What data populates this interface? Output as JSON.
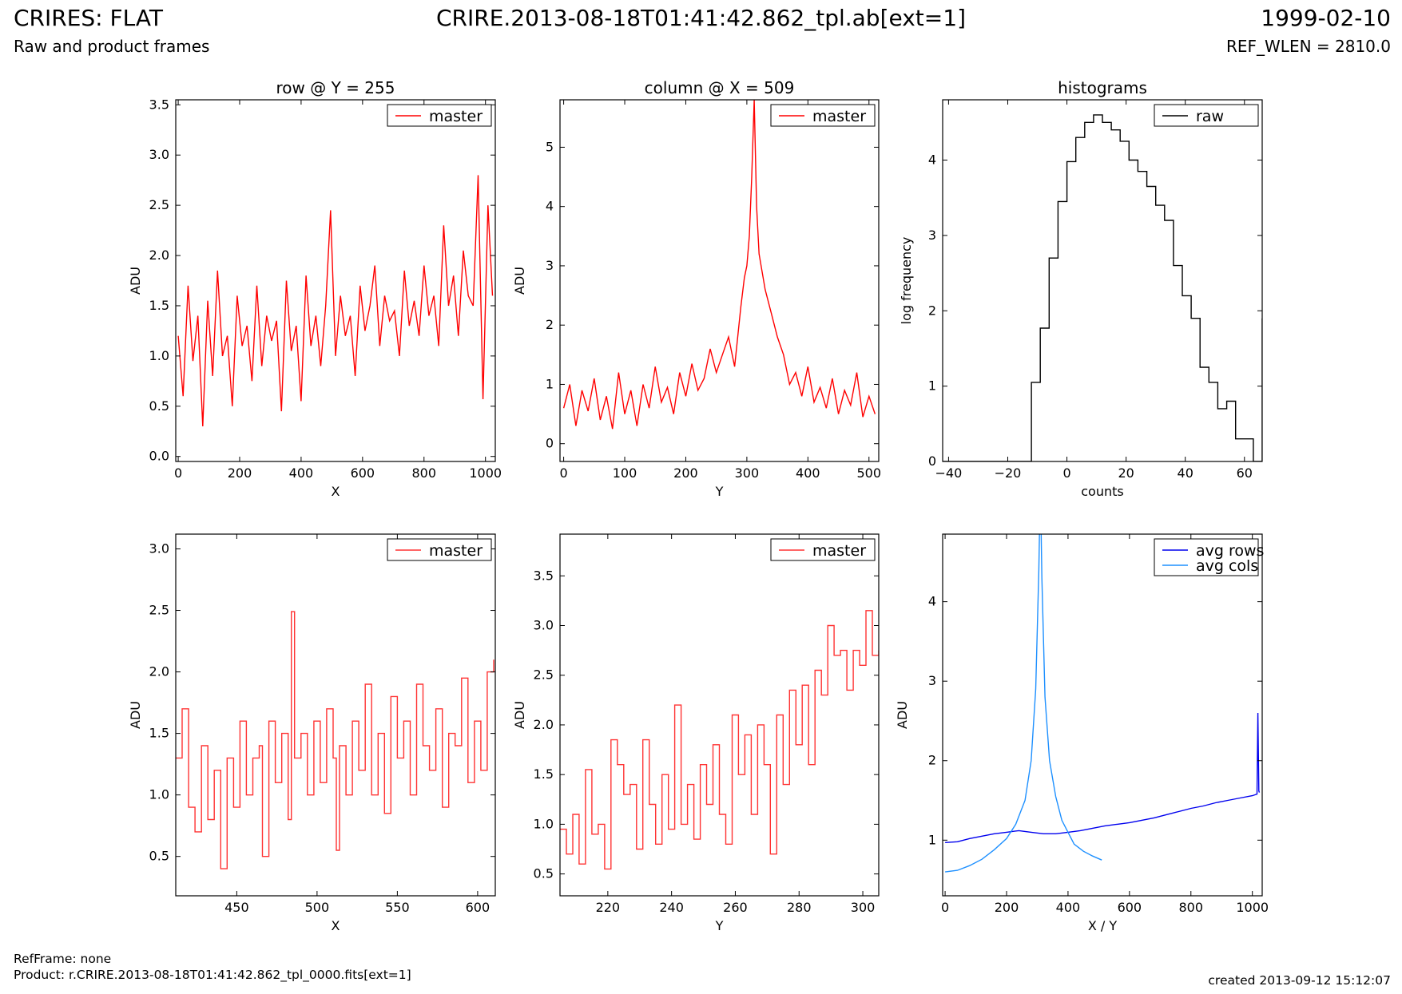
{
  "header": {
    "title": "CRIRES: FLAT",
    "filename": "CRIRE.2013-08-18T01:41:42.862_tpl.ab[ext=1]",
    "date": "1999-02-10",
    "subtitle": "Raw and product frames",
    "ref_wlen": "REF_WLEN = 2810.0"
  },
  "footer": {
    "refframe": "RefFrame: none",
    "product": "Product: r.CRIRE.2013-08-18T01:41:42.862_tpl_0000.fits[ext=1]",
    "created": "created 2013-09-12 15:12:07"
  },
  "colors": {
    "master": "#ff0000",
    "master_zoom": "#ff3333",
    "raw": "#000000",
    "avg_rows": "#0000ee",
    "avg_cols": "#1e90ff"
  },
  "chart_data": [
    {
      "id": "row",
      "type": "line",
      "title": "row @ Y = 255",
      "xlabel": "X",
      "ylabel": "ADU",
      "xlim": [
        -8,
        1032
      ],
      "ylim": [
        -0.05,
        3.55
      ],
      "xticks": [
        0,
        200,
        400,
        600,
        800,
        1000
      ],
      "yticks": [
        0.0,
        0.5,
        1.0,
        1.5,
        2.0,
        2.5,
        3.0,
        3.5
      ],
      "ytick_labels": [
        "0.0",
        "0.5",
        "1.0",
        "1.5",
        "2.0",
        "2.5",
        "3.0",
        "3.5"
      ],
      "legend": "upper right",
      "series": [
        {
          "name": "master",
          "color": "#ff0000",
          "step": false,
          "x": [
            0,
            16,
            32,
            48,
            64,
            80,
            96,
            112,
            128,
            144,
            160,
            176,
            192,
            208,
            224,
            240,
            256,
            272,
            288,
            304,
            320,
            336,
            352,
            368,
            384,
            400,
            416,
            432,
            448,
            464,
            480,
            496,
            512,
            528,
            544,
            560,
            576,
            592,
            608,
            624,
            640,
            656,
            672,
            688,
            704,
            720,
            736,
            752,
            768,
            784,
            800,
            816,
            832,
            848,
            864,
            880,
            896,
            912,
            928,
            944,
            960,
            976,
            992,
            1008,
            1023
          ],
          "y": [
            1.2,
            0.6,
            1.7,
            0.95,
            1.4,
            0.3,
            1.55,
            0.8,
            1.85,
            1.0,
            1.2,
            0.5,
            1.6,
            1.1,
            1.3,
            0.75,
            1.7,
            0.9,
            1.4,
            1.15,
            1.35,
            0.45,
            1.75,
            1.05,
            1.3,
            0.55,
            1.8,
            1.1,
            1.4,
            0.9,
            1.5,
            2.45,
            1.0,
            1.6,
            1.2,
            1.4,
            0.8,
            1.7,
            1.25,
            1.5,
            1.9,
            1.1,
            1.6,
            1.35,
            1.45,
            1.0,
            1.85,
            1.3,
            1.55,
            1.2,
            1.9,
            1.4,
            1.6,
            1.1,
            2.3,
            1.5,
            1.8,
            1.2,
            2.05,
            1.6,
            1.5,
            2.8,
            0.57,
            2.5,
            1.6
          ]
        }
      ]
    },
    {
      "id": "column",
      "type": "line",
      "title": "column @ X = 509",
      "xlabel": "Y",
      "ylabel": "ADU",
      "xlim": [
        -6,
        516
      ],
      "ylim": [
        -0.3,
        5.8
      ],
      "xticks": [
        0,
        100,
        200,
        300,
        400,
        500
      ],
      "yticks": [
        0,
        1,
        2,
        3,
        4,
        5
      ],
      "ytick_labels": [
        "0",
        "1",
        "2",
        "3",
        "4",
        "5"
      ],
      "legend": "upper right",
      "series": [
        {
          "name": "master",
          "color": "#ff0000",
          "step": false,
          "x": [
            0,
            10,
            20,
            30,
            40,
            50,
            60,
            70,
            80,
            90,
            100,
            110,
            120,
            130,
            140,
            150,
            160,
            170,
            180,
            190,
            200,
            210,
            220,
            230,
            240,
            250,
            260,
            270,
            280,
            290,
            296,
            300,
            304,
            308,
            312,
            316,
            320,
            330,
            340,
            350,
            360,
            370,
            380,
            390,
            400,
            410,
            420,
            430,
            440,
            450,
            460,
            470,
            480,
            490,
            500,
            510
          ],
          "y": [
            0.6,
            1.0,
            0.3,
            0.9,
            0.55,
            1.1,
            0.4,
            0.8,
            0.25,
            1.2,
            0.5,
            0.9,
            0.3,
            1.0,
            0.6,
            1.3,
            0.7,
            0.95,
            0.5,
            1.2,
            0.8,
            1.35,
            0.9,
            1.1,
            1.6,
            1.2,
            1.5,
            1.8,
            1.3,
            2.3,
            2.8,
            3.0,
            3.5,
            4.5,
            5.8,
            4.0,
            3.2,
            2.6,
            2.2,
            1.8,
            1.5,
            1.0,
            1.2,
            0.8,
            1.3,
            0.7,
            0.95,
            0.6,
            1.1,
            0.5,
            0.9,
            0.65,
            1.2,
            0.45,
            0.8,
            0.5
          ]
        }
      ]
    },
    {
      "id": "histograms",
      "type": "line",
      "title": "histograms",
      "xlabel": "counts",
      "ylabel": "log frequency",
      "xlim": [
        -42,
        66
      ],
      "ylim": [
        0,
        4.8
      ],
      "xticks": [
        -40,
        -20,
        0,
        20,
        40,
        60
      ],
      "yticks": [
        0,
        1,
        2,
        3,
        4
      ],
      "xtick_labels": [
        "−40",
        "−20",
        "0",
        "20",
        "40",
        "60"
      ],
      "ytick_labels": [
        "0",
        "1",
        "2",
        "3",
        "4"
      ],
      "legend": "upper right",
      "series": [
        {
          "name": "raw",
          "color": "#000000",
          "step": true,
          "x": [
            -42,
            -12,
            -12,
            -9,
            -9,
            -6,
            -6,
            -3,
            -3,
            0,
            0,
            3,
            3,
            6,
            6,
            9,
            9,
            12,
            12,
            15,
            15,
            18,
            18,
            21,
            21,
            24,
            24,
            27,
            27,
            30,
            30,
            33,
            33,
            36,
            36,
            39,
            39,
            42,
            42,
            45,
            45,
            48,
            48,
            51,
            51,
            54,
            54,
            57,
            57,
            60,
            60,
            63,
            63,
            66,
            66
          ],
          "y": [
            0,
            0,
            1.05,
            1.05,
            1.77,
            1.77,
            2.7,
            2.7,
            3.45,
            3.45,
            3.98,
            3.98,
            4.3,
            4.3,
            4.5,
            4.5,
            4.6,
            4.6,
            4.5,
            4.5,
            4.4,
            4.4,
            4.25,
            4.25,
            4.0,
            4.0,
            3.85,
            3.85,
            3.65,
            3.65,
            3.4,
            3.4,
            3.2,
            3.2,
            2.6,
            2.6,
            2.2,
            2.2,
            1.9,
            1.9,
            1.25,
            1.25,
            1.05,
            1.05,
            0.7,
            0.7,
            0.8,
            0.8,
            0.3,
            0.3,
            0.3,
            0.3,
            0,
            0,
            1.9
          ]
        }
      ]
    },
    {
      "id": "row-zoom",
      "type": "line",
      "title": "",
      "xlabel": "X",
      "ylabel": "ADU",
      "xlim": [
        412,
        611
      ],
      "ylim": [
        0.18,
        3.12
      ],
      "xticks": [
        450,
        500,
        550,
        600
      ],
      "yticks": [
        0.5,
        1.0,
        1.5,
        2.0,
        2.5,
        3.0
      ],
      "ytick_labels": [
        "0.5",
        "1.0",
        "1.5",
        "2.0",
        "2.5",
        "3.0"
      ],
      "legend": "upper right",
      "series": [
        {
          "name": "master",
          "color": "#ff3333",
          "step": true,
          "x": [
            412,
            416,
            420,
            424,
            428,
            432,
            436,
            440,
            444,
            448,
            452,
            456,
            460,
            464,
            466,
            470,
            474,
            478,
            482,
            484,
            486,
            490,
            494,
            498,
            502,
            506,
            510,
            512,
            514,
            518,
            522,
            526,
            530,
            534,
            538,
            542,
            546,
            550,
            554,
            558,
            562,
            566,
            570,
            574,
            578,
            582,
            586,
            590,
            594,
            598,
            602,
            606,
            610
          ],
          "y": [
            1.3,
            1.7,
            0.9,
            0.7,
            1.4,
            0.8,
            1.2,
            0.4,
            1.3,
            0.9,
            1.6,
            1.0,
            1.3,
            1.4,
            0.5,
            1.6,
            1.1,
            1.5,
            0.8,
            2.49,
            1.3,
            1.5,
            1.0,
            1.6,
            1.1,
            1.7,
            1.3,
            0.55,
            1.4,
            1.0,
            1.6,
            1.2,
            1.9,
            1.0,
            1.5,
            0.85,
            1.8,
            1.3,
            1.6,
            1.0,
            1.9,
            1.4,
            1.2,
            1.7,
            0.9,
            1.5,
            1.4,
            1.95,
            1.1,
            1.6,
            1.2,
            2.0,
            2.1
          ]
        }
      ]
    },
    {
      "id": "column-zoom",
      "type": "line",
      "title": "",
      "xlabel": "Y",
      "ylabel": "ADU",
      "xlim": [
        205,
        305
      ],
      "ylim": [
        0.28,
        3.92
      ],
      "xticks": [
        220,
        240,
        260,
        280,
        300
      ],
      "yticks": [
        0.5,
        1.0,
        1.5,
        2.0,
        2.5,
        3.0,
        3.5
      ],
      "ytick_labels": [
        "0.5",
        "1.0",
        "1.5",
        "2.0",
        "2.5",
        "3.0",
        "3.5"
      ],
      "legend": "upper right",
      "series": [
        {
          "name": "master",
          "color": "#ff3333",
          "step": true,
          "x": [
            205,
            207,
            209,
            211,
            213,
            215,
            217,
            219,
            221,
            223,
            225,
            227,
            229,
            231,
            233,
            235,
            237,
            239,
            241,
            243,
            245,
            247,
            249,
            251,
            253,
            255,
            257,
            259,
            261,
            263,
            265,
            267,
            269,
            271,
            273,
            275,
            277,
            279,
            281,
            283,
            285,
            287,
            289,
            291,
            293,
            295,
            297,
            299,
            301,
            303,
            305
          ],
          "y": [
            0.95,
            0.7,
            1.1,
            0.6,
            1.55,
            0.9,
            1.0,
            0.55,
            1.85,
            1.6,
            1.3,
            1.4,
            0.75,
            1.85,
            1.2,
            0.8,
            1.5,
            0.95,
            2.2,
            1.0,
            1.4,
            0.85,
            1.6,
            1.2,
            1.8,
            1.1,
            0.8,
            2.1,
            1.5,
            1.9,
            1.1,
            2.0,
            1.6,
            0.7,
            2.1,
            1.4,
            2.35,
            1.8,
            2.4,
            1.6,
            2.55,
            2.3,
            3.0,
            2.7,
            2.75,
            2.35,
            2.75,
            2.6,
            3.15,
            2.7,
            2.75
          ]
        }
      ]
    },
    {
      "id": "averages",
      "type": "line",
      "title": "",
      "xlabel": "X / Y",
      "ylabel": "ADU",
      "xlim": [
        -8,
        1032
      ],
      "ylim": [
        0.3,
        4.85
      ],
      "xticks": [
        0,
        200,
        400,
        600,
        800,
        1000
      ],
      "yticks": [
        1,
        2,
        3,
        4
      ],
      "ytick_labels": [
        "1",
        "2",
        "3",
        "4"
      ],
      "legend": "upper right",
      "series": [
        {
          "name": "avg rows",
          "color": "#0000ee",
          "step": false,
          "x": [
            0,
            40,
            80,
            120,
            160,
            200,
            240,
            280,
            320,
            360,
            400,
            440,
            480,
            520,
            560,
            600,
            640,
            680,
            720,
            760,
            800,
            840,
            880,
            920,
            960,
            1000,
            1015,
            1018,
            1021,
            1023
          ],
          "y": [
            0.97,
            0.98,
            1.02,
            1.05,
            1.08,
            1.1,
            1.12,
            1.1,
            1.08,
            1.08,
            1.1,
            1.12,
            1.15,
            1.18,
            1.2,
            1.22,
            1.25,
            1.28,
            1.32,
            1.36,
            1.4,
            1.43,
            1.47,
            1.5,
            1.53,
            1.56,
            1.58,
            2.6,
            1.62,
            1.6
          ]
        },
        {
          "name": "avg cols",
          "color": "#1e90ff",
          "step": false,
          "x": [
            0,
            40,
            80,
            120,
            160,
            200,
            230,
            260,
            280,
            295,
            305,
            310,
            315,
            325,
            340,
            360,
            380,
            400,
            420,
            450,
            480,
            510
          ],
          "y": [
            0.6,
            0.62,
            0.68,
            0.76,
            0.88,
            1.02,
            1.2,
            1.5,
            2.0,
            2.9,
            4.4,
            5.5,
            4.3,
            2.8,
            2.0,
            1.55,
            1.25,
            1.1,
            0.95,
            0.86,
            0.8,
            0.75
          ]
        }
      ]
    }
  ]
}
